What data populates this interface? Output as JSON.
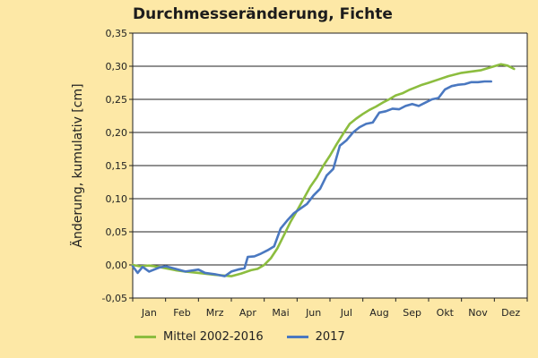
{
  "chart_data": {
    "type": "line",
    "title": "Durchmesseränderung, Fichte",
    "xlabel": "",
    "ylabel": "Änderung, kumulativ  [cm]",
    "ylim": [
      -0.05,
      0.35
    ],
    "yticks": [
      "-0,05",
      "0,00",
      "0,05",
      "0,10",
      "0,15",
      "0,20",
      "0,25",
      "0,30",
      "0,35"
    ],
    "categories": [
      "Jan",
      "Feb",
      "Mrz",
      "Apr",
      "Mai",
      "Jun",
      "Jul",
      "Aug",
      "Sep",
      "Okt",
      "Nov",
      "Dez"
    ],
    "grid": true,
    "legend": "bottom",
    "series": [
      {
        "name": "Mittel 2002-2016",
        "color": "#8cbd3f",
        "x": [
          0,
          0.2,
          0.5,
          0.8,
          1.0,
          1.3,
          1.6,
          2.0,
          2.5,
          3.0,
          3.3,
          3.6,
          3.8,
          4.0,
          4.2,
          4.4,
          4.6,
          4.8,
          5.0,
          5.2,
          5.4,
          5.6,
          5.8,
          6.0,
          6.2,
          6.4,
          6.6,
          6.8,
          7.0,
          7.2,
          7.4,
          7.6,
          7.8,
          8.0,
          8.2,
          8.4,
          8.6,
          8.8,
          9.0,
          9.3,
          9.6,
          10.0,
          10.3,
          10.6,
          11.0,
          11.2,
          11.4,
          11.6
        ],
        "values": [
          0.0,
          -0.002,
          -0.001,
          -0.003,
          -0.005,
          -0.008,
          -0.01,
          -0.012,
          -0.015,
          -0.017,
          -0.013,
          -0.008,
          -0.006,
          0.0,
          0.01,
          0.025,
          0.045,
          0.065,
          0.082,
          0.1,
          0.118,
          0.132,
          0.15,
          0.165,
          0.182,
          0.198,
          0.213,
          0.221,
          0.228,
          0.234,
          0.239,
          0.245,
          0.25,
          0.256,
          0.259,
          0.264,
          0.268,
          0.272,
          0.275,
          0.28,
          0.285,
          0.29,
          0.292,
          0.294,
          0.3,
          0.303,
          0.301,
          0.296
        ]
      },
      {
        "name": "2017",
        "color": "#4a78c0",
        "x": [
          0,
          0.15,
          0.3,
          0.5,
          0.8,
          1.0,
          1.3,
          1.6,
          2.0,
          2.2,
          2.5,
          2.8,
          3.0,
          3.2,
          3.4,
          3.5,
          3.7,
          3.9,
          4.1,
          4.3,
          4.5,
          4.7,
          4.9,
          5.1,
          5.3,
          5.5,
          5.7,
          5.9,
          6.1,
          6.3,
          6.5,
          6.7,
          6.9,
          7.1,
          7.3,
          7.5,
          7.7,
          7.9,
          8.1,
          8.3,
          8.5,
          8.7,
          8.9,
          9.1,
          9.3,
          9.5,
          9.7,
          9.9,
          10.1,
          10.3,
          10.5,
          10.7,
          10.9
        ],
        "values": [
          -0.002,
          -0.012,
          -0.003,
          -0.01,
          -0.004,
          -0.002,
          -0.006,
          -0.01,
          -0.007,
          -0.012,
          -0.014,
          -0.017,
          -0.01,
          -0.007,
          -0.005,
          0.012,
          0.013,
          0.017,
          0.022,
          0.028,
          0.055,
          0.067,
          0.078,
          0.085,
          0.092,
          0.105,
          0.115,
          0.135,
          0.145,
          0.18,
          0.188,
          0.2,
          0.208,
          0.213,
          0.215,
          0.23,
          0.232,
          0.236,
          0.235,
          0.24,
          0.243,
          0.24,
          0.245,
          0.25,
          0.252,
          0.265,
          0.27,
          0.272,
          0.273,
          0.276,
          0.276,
          0.277,
          0.277
        ]
      }
    ]
  }
}
